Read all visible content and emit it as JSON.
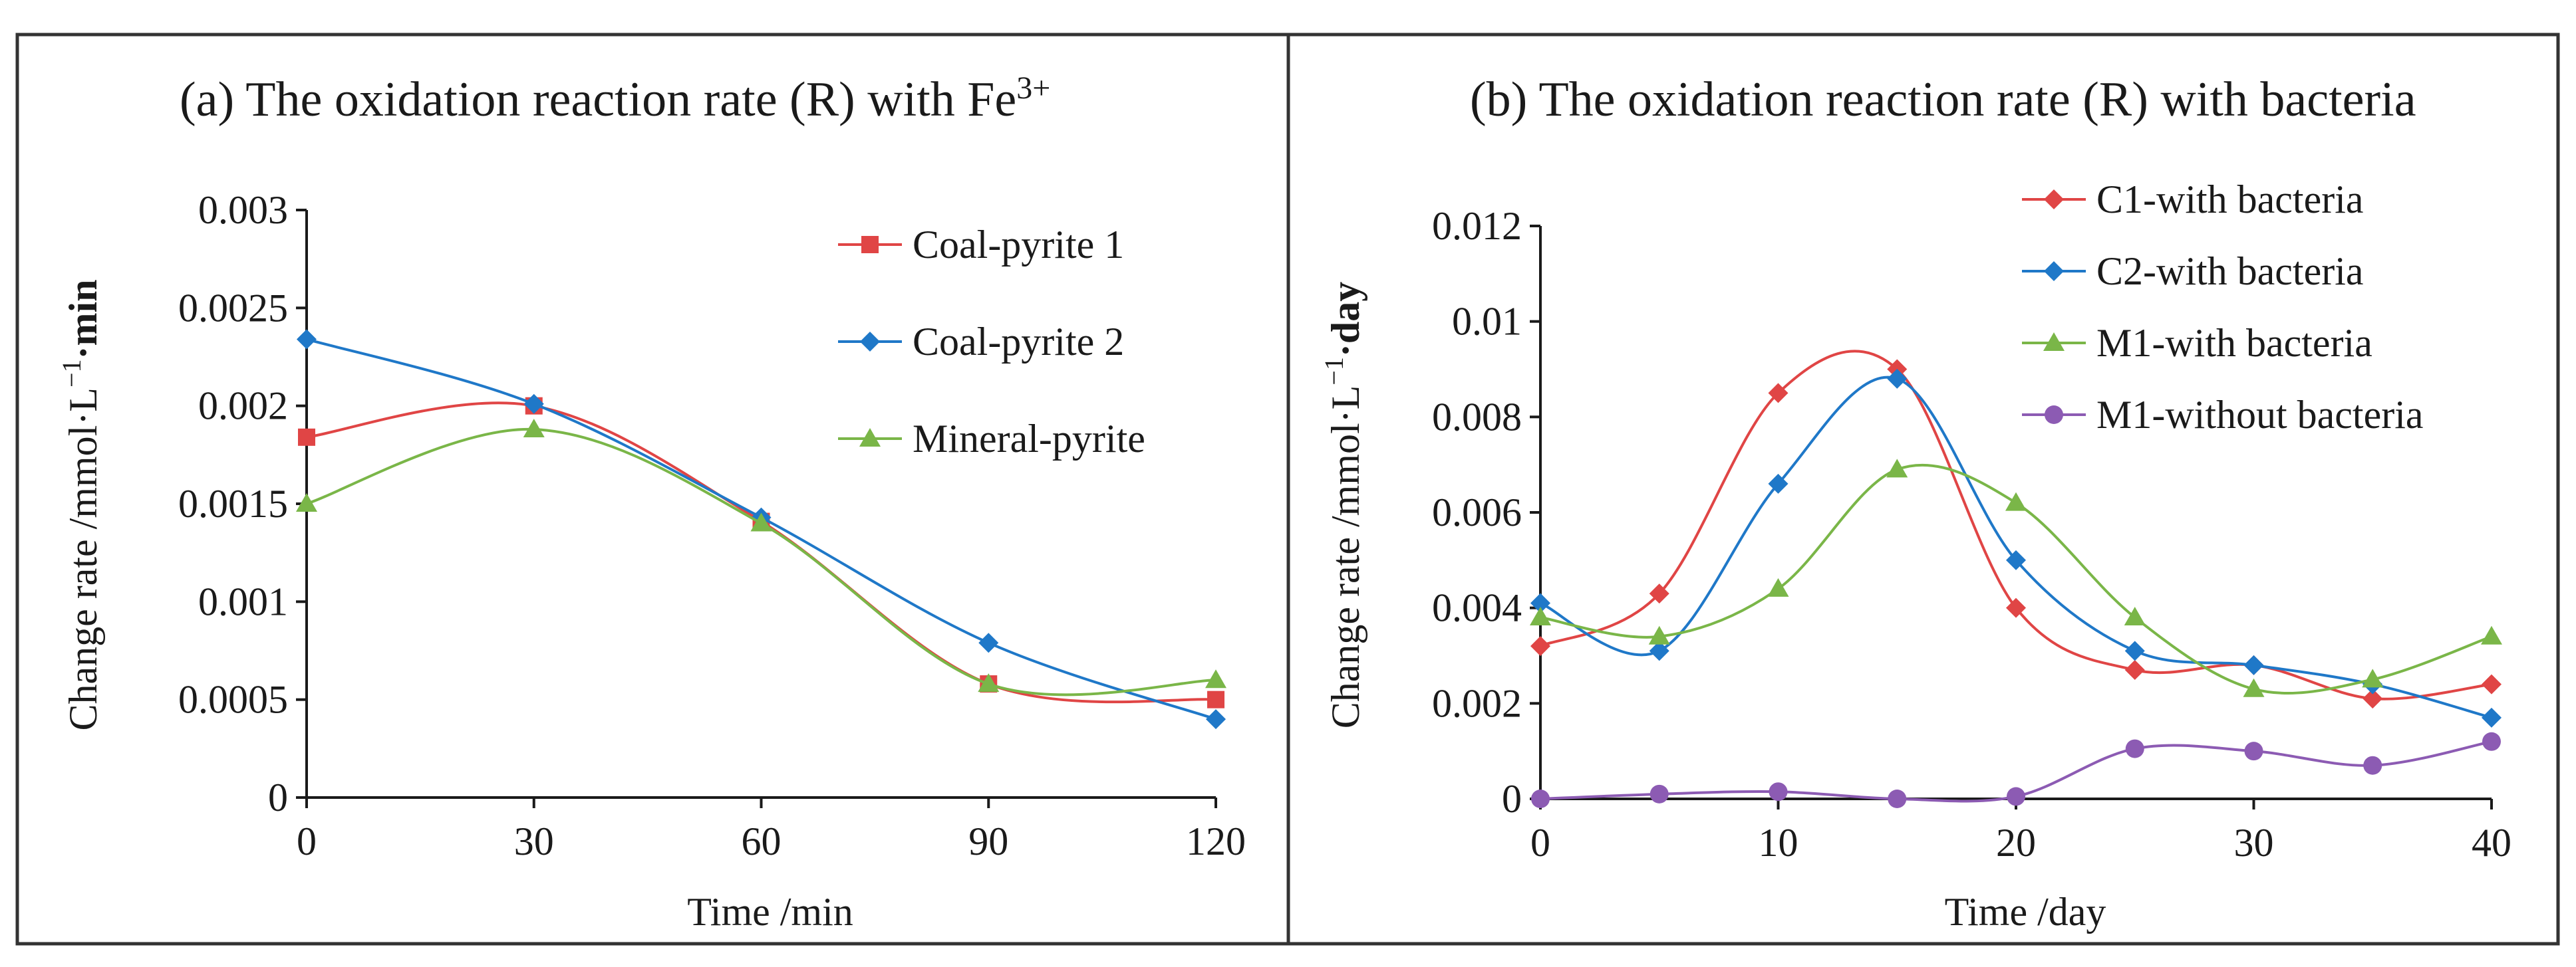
{
  "chart_data": [
    {
      "type": "line",
      "title": "(a) The oxidation reaction rate (R) with Fe",
      "title_sup": "3+",
      "xlabel": "Time /min",
      "ylabel_prefix": "Change rate /mmol·L",
      "ylabel_sup": "−1",
      "ylabel_unit": "·min",
      "xlim": [
        0,
        120
      ],
      "ylim": [
        0,
        0.003
      ],
      "xticks": [
        0,
        30,
        60,
        90,
        120
      ],
      "yticks": [
        0,
        0.0005,
        0.001,
        0.0015,
        0.002,
        0.0025,
        0.003
      ],
      "ytick_labels": [
        "0",
        "0.0005",
        "0.001",
        "0.0015",
        "0.002",
        "0.0025",
        "0.003"
      ],
      "x": [
        0,
        30,
        60,
        90,
        120
      ],
      "legend_position": "top-right",
      "series": [
        {
          "name": "Coal-pyrite 1",
          "marker": "square",
          "color": "#e04545",
          "values": [
            0.00184,
            0.002,
            0.00141,
            0.00058,
            0.0005
          ]
        },
        {
          "name": "Coal-pyrite 2",
          "marker": "diamond",
          "color": "#1f78c8",
          "values": [
            0.00234,
            0.00201,
            0.00143,
            0.00079,
            0.0004
          ]
        },
        {
          "name": "Mineral-pyrite",
          "marker": "triangle",
          "color": "#7ab648",
          "values": [
            0.0015,
            0.00188,
            0.0014,
            0.00058,
            0.0006
          ]
        }
      ]
    },
    {
      "type": "line",
      "title": "(b) The oxidation reaction rate (R) with bacteria",
      "xlabel": "Time /day",
      "ylabel_prefix": "Change rate /mmol·L",
      "ylabel_sup": "−1",
      "ylabel_unit": "·day",
      "xlim": [
        0,
        40
      ],
      "ylim": [
        0,
        0.012
      ],
      "xticks": [
        0,
        10,
        20,
        30,
        40
      ],
      "yticks": [
        0,
        0.002,
        0.004,
        0.006,
        0.008,
        0.01,
        0.012
      ],
      "ytick_labels": [
        "0",
        "0.002",
        "0.004",
        "0.006",
        "0.008",
        "0.01",
        "0.012"
      ],
      "x": [
        0,
        5,
        10,
        15,
        20,
        25,
        30,
        35,
        40
      ],
      "legend_position": "top-right",
      "series": [
        {
          "name": "C1-with bacteria",
          "marker": "diamond",
          "color": "#e04545",
          "values": [
            0.0032,
            0.0043,
            0.0085,
            0.009,
            0.004,
            0.0027,
            0.0028,
            0.0021,
            0.0024
          ]
        },
        {
          "name": "C2-with bacteria",
          "marker": "diamond",
          "color": "#1f78c8",
          "values": [
            0.0041,
            0.0031,
            0.0066,
            0.0088,
            0.005,
            0.0031,
            0.0028,
            0.0024,
            0.0017
          ]
        },
        {
          "name": "M1-with bacteria",
          "marker": "triangle",
          "color": "#7ab648",
          "values": [
            0.0038,
            0.0034,
            0.0044,
            0.0069,
            0.0062,
            0.0038,
            0.0023,
            0.0025,
            0.0034
          ]
        },
        {
          "name": "M1-without bacteria",
          "marker": "circle",
          "color": "#8c5bb3",
          "values": [
            0.0,
            0.0001,
            0.00015,
            0.0,
            5e-05,
            0.00105,
            0.001,
            0.0007,
            0.0012
          ]
        }
      ]
    }
  ],
  "colors": {
    "frame": "#333333",
    "axis": "#1a1a1a",
    "background": "#ffffff"
  }
}
